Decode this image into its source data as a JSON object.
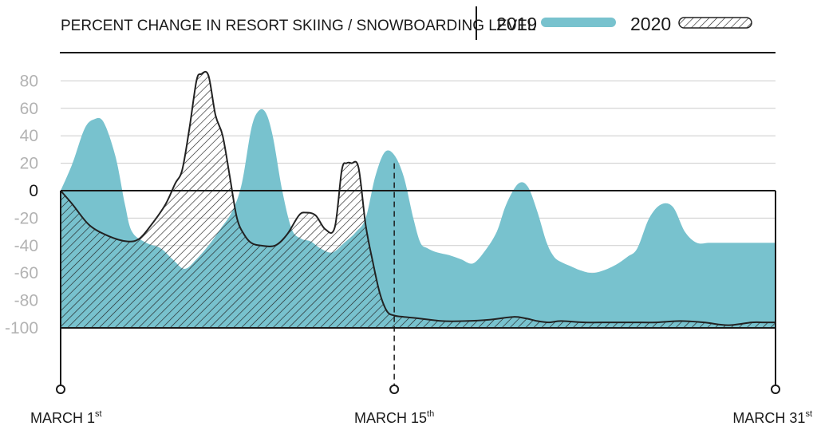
{
  "chart_data": {
    "type": "area",
    "title": "PERCENT CHANGE IN RESORT SKIING / SNOWBOARDING LEVEL",
    "ylim": [
      -100,
      100
    ],
    "yticks": [
      80,
      60,
      40,
      20,
      0,
      -20,
      -40,
      -60,
      -80,
      -100
    ],
    "ytick_labels": [
      "80",
      "60",
      "40",
      "20",
      "0",
      "-20",
      "-40",
      "-60",
      "-80",
      "-100"
    ],
    "x_range_days": [
      1,
      31
    ],
    "x_labels": [
      {
        "day": 1,
        "text": "MARCH 1",
        "sup": "st"
      },
      {
        "day": 15,
        "text": "MARCH 15",
        "sup": "th"
      },
      {
        "day": 31,
        "text": "MARCH 31",
        "sup": "st"
      }
    ],
    "marker_day": 15,
    "grid": true,
    "legend_position": "top-right",
    "colors": {
      "2019": "#78c2ce",
      "2020": "#222222",
      "grid": "#cccccc",
      "axis_text": "#b3b3b3"
    },
    "series": [
      {
        "name": "2019",
        "style": "filled-teal",
        "x": [
          1,
          1.5,
          2,
          2.4,
          2.8,
          3.3,
          3.7,
          4,
          4.6,
          5.2,
          5.7,
          6.2,
          6.7,
          7.2,
          7.7,
          8.2,
          8.6,
          9.0,
          9.3,
          9.6,
          9.9,
          10.3,
          10.7,
          11.1,
          11.5,
          11.9,
          12.4,
          12.9,
          13.4,
          13.8,
          14.2,
          14.6,
          15.0,
          15.4,
          15.8,
          16.1,
          16.4,
          16.8,
          17.3,
          17.8,
          18.3,
          18.8,
          19.3,
          19.7,
          20.2,
          20.6,
          21.0,
          21.4,
          21.7,
          22.0,
          22.4,
          22.8,
          23.3,
          23.8,
          24.3,
          24.8,
          25.2,
          25.7,
          26.2,
          26.7,
          27.2,
          27.7,
          28.2,
          28.6,
          29.0,
          29.3,
          29.6,
          29.9,
          30.3,
          30.7,
          31
        ],
        "values": [
          0,
          20,
          45,
          52,
          50,
          25,
          -10,
          -30,
          -38,
          -42,
          -50,
          -57,
          -50,
          -40,
          -28,
          -15,
          5,
          45,
          58,
          57,
          40,
          0,
          -28,
          -35,
          -37,
          -42,
          -45,
          -38,
          -30,
          -20,
          10,
          28,
          26,
          10,
          -20,
          -38,
          -42,
          -45,
          -47,
          -50,
          -53,
          -44,
          -30,
          -10,
          5,
          3,
          -15,
          -38,
          -48,
          -52,
          -55,
          -58,
          -60,
          -58,
          -54,
          -48,
          -42,
          -20,
          -10,
          -12,
          -30,
          -38,
          -38,
          -38,
          -38,
          -38,
          -38,
          -38,
          -38,
          -38,
          -38
        ]
      },
      {
        "name": "2020",
        "style": "hatched",
        "x": [
          1,
          1.5,
          2.2,
          3,
          3.8,
          4.3,
          4.8,
          5.4,
          5.8,
          6.1,
          6.4,
          6.7,
          6.9,
          7.2,
          7.5,
          7.8,
          8.1,
          8.4,
          8.7,
          9.0,
          9.4,
          10.0,
          10.5,
          11.0,
          11.3,
          11.7,
          12.1,
          12.5,
          12.8,
          13.0,
          13.2,
          13.5,
          13.8,
          14.1,
          14.4,
          14.7,
          15.0,
          15.4,
          16.0,
          17.0,
          18.0,
          19.0,
          20.0,
          20.5,
          21.0,
          21.5,
          22.0,
          23.0,
          24.0,
          25.0,
          26.0,
          27.0,
          28.0,
          29.0,
          30.0,
          30.5,
          31
        ],
        "values": [
          0,
          -10,
          -25,
          -33,
          -37,
          -35,
          -25,
          -10,
          5,
          15,
          45,
          80,
          85,
          84,
          55,
          40,
          10,
          -20,
          -32,
          -38,
          -40,
          -40,
          -32,
          -18,
          -16,
          -18,
          -28,
          -27,
          15,
          20,
          20,
          17,
          -25,
          -52,
          -75,
          -88,
          -91,
          -92,
          -93,
          -95,
          -95,
          -94,
          -92,
          -93,
          -95,
          -96,
          -95,
          -96,
          -96,
          -96,
          -96,
          -95,
          -96,
          -98,
          -96,
          -96,
          -96
        ]
      }
    ]
  }
}
